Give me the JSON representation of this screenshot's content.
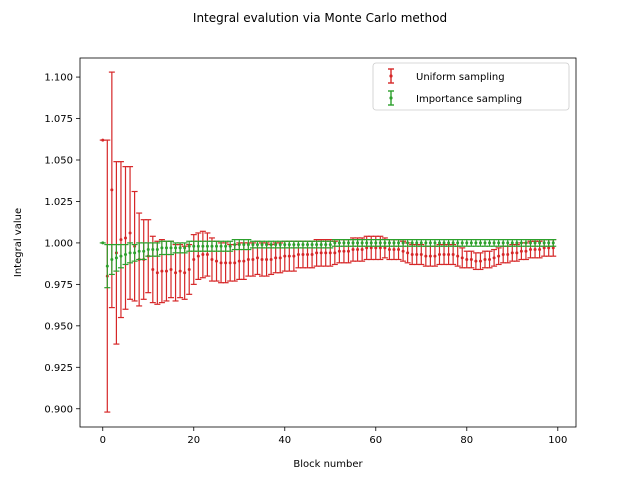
{
  "chart_data": {
    "type": "scatter",
    "title": "Integral evalution via Monte Carlo method",
    "xlabel": "Block number",
    "ylabel": "Integral value",
    "xlim": [
      -5,
      104
    ],
    "ylim": [
      0.889,
      1.1115
    ],
    "xticks": [
      0,
      20,
      40,
      60,
      80,
      100
    ],
    "yticks": [
      0.9,
      0.925,
      0.95,
      0.975,
      1.0,
      1.025,
      1.05,
      1.075,
      1.1
    ],
    "ytick_labels": [
      "0.900",
      "0.925",
      "0.950",
      "0.975",
      "1.000",
      "1.025",
      "1.050",
      "1.075",
      "1.100"
    ],
    "grid": false,
    "legend_position": "top-right",
    "series": [
      {
        "name": "Uniform sampling",
        "color": "#d62728",
        "x": [
          0,
          1,
          2,
          3,
          4,
          5,
          6,
          7,
          8,
          9,
          10,
          11,
          12,
          13,
          14,
          15,
          16,
          17,
          18,
          19,
          20,
          21,
          22,
          23,
          24,
          25,
          26,
          27,
          28,
          29,
          30,
          31,
          32,
          33,
          34,
          35,
          36,
          37,
          38,
          39,
          40,
          41,
          42,
          43,
          44,
          45,
          46,
          47,
          48,
          49,
          50,
          51,
          52,
          53,
          54,
          55,
          56,
          57,
          58,
          59,
          60,
          61,
          62,
          63,
          64,
          65,
          66,
          67,
          68,
          69,
          70,
          71,
          72,
          73,
          74,
          75,
          76,
          77,
          78,
          79,
          80,
          81,
          82,
          83,
          84,
          85,
          86,
          87,
          88,
          89,
          90,
          91,
          92,
          93,
          94,
          95,
          96,
          97,
          98,
          99
        ],
        "y": [
          1.062,
          0.98,
          1.032,
          0.994,
          1.002,
          1.003,
          1.006,
          0.998,
          0.99,
          0.99,
          0.992,
          0.984,
          0.982,
          0.983,
          0.983,
          0.984,
          0.982,
          0.983,
          0.982,
          0.984,
          0.99,
          0.992,
          0.993,
          0.993,
          0.99,
          0.989,
          0.988,
          0.988,
          0.988,
          0.988,
          0.989,
          0.989,
          0.99,
          0.99,
          0.991,
          0.99,
          0.99,
          0.99,
          0.991,
          0.991,
          0.992,
          0.992,
          0.992,
          0.993,
          0.993,
          0.993,
          0.993,
          0.994,
          0.994,
          0.994,
          0.994,
          0.994,
          0.995,
          0.995,
          0.995,
          0.996,
          0.996,
          0.996,
          0.997,
          0.997,
          0.997,
          0.997,
          0.997,
          0.996,
          0.996,
          0.996,
          0.995,
          0.994,
          0.993,
          0.993,
          0.993,
          0.992,
          0.992,
          0.992,
          0.993,
          0.993,
          0.993,
          0.993,
          0.992,
          0.991,
          0.99,
          0.99,
          0.989,
          0.989,
          0.99,
          0.99,
          0.991,
          0.992,
          0.993,
          0.993,
          0.994,
          0.994,
          0.995,
          0.995,
          0.996,
          0.996,
          0.996,
          0.997,
          0.997,
          0.997
        ],
        "err": [
          0.0,
          0.082,
          0.071,
          0.055,
          0.047,
          0.043,
          0.04,
          0.033,
          0.028,
          0.024,
          0.022,
          0.02,
          0.019,
          0.019,
          0.018,
          0.017,
          0.017,
          0.016,
          0.016,
          0.015,
          0.015,
          0.014,
          0.014,
          0.013,
          0.013,
          0.012,
          0.012,
          0.012,
          0.011,
          0.011,
          0.011,
          0.011,
          0.01,
          0.01,
          0.01,
          0.01,
          0.01,
          0.009,
          0.009,
          0.009,
          0.009,
          0.009,
          0.009,
          0.008,
          0.008,
          0.008,
          0.008,
          0.008,
          0.008,
          0.008,
          0.008,
          0.007,
          0.007,
          0.007,
          0.007,
          0.007,
          0.007,
          0.007,
          0.007,
          0.007,
          0.007,
          0.007,
          0.006,
          0.006,
          0.006,
          0.006,
          0.006,
          0.006,
          0.006,
          0.006,
          0.006,
          0.006,
          0.006,
          0.006,
          0.006,
          0.006,
          0.006,
          0.006,
          0.006,
          0.006,
          0.005,
          0.005,
          0.005,
          0.005,
          0.005,
          0.005,
          0.005,
          0.005,
          0.005,
          0.005,
          0.005,
          0.005,
          0.005,
          0.005,
          0.005,
          0.005,
          0.005,
          0.005,
          0.005,
          0.005
        ]
      },
      {
        "name": "Importance sampling",
        "color": "#2ca02c",
        "x": [
          0,
          1,
          2,
          3,
          4,
          5,
          6,
          7,
          8,
          9,
          10,
          11,
          12,
          13,
          14,
          15,
          16,
          17,
          18,
          19,
          20,
          21,
          22,
          23,
          24,
          25,
          26,
          27,
          28,
          29,
          30,
          31,
          32,
          33,
          34,
          35,
          36,
          37,
          38,
          39,
          40,
          41,
          42,
          43,
          44,
          45,
          46,
          47,
          48,
          49,
          50,
          51,
          52,
          53,
          54,
          55,
          56,
          57,
          58,
          59,
          60,
          61,
          62,
          63,
          64,
          65,
          66,
          67,
          68,
          69,
          70,
          71,
          72,
          73,
          74,
          75,
          76,
          77,
          78,
          79,
          80,
          81,
          82,
          83,
          84,
          85,
          86,
          87,
          88,
          89,
          90,
          91,
          92,
          93,
          94,
          95,
          96,
          97,
          98,
          99
        ],
        "y": [
          1.0,
          0.986,
          0.99,
          0.991,
          0.992,
          0.993,
          0.994,
          0.994,
          0.995,
          0.995,
          0.996,
          0.996,
          0.996,
          0.997,
          0.997,
          0.997,
          0.997,
          0.997,
          0.997,
          0.998,
          0.998,
          0.998,
          0.998,
          0.998,
          0.998,
          0.998,
          0.998,
          0.998,
          0.998,
          0.999,
          0.999,
          0.999,
          0.999,
          0.999,
          0.999,
          0.999,
          0.999,
          0.999,
          0.999,
          0.999,
          0.999,
          0.999,
          0.999,
          0.999,
          0.999,
          0.999,
          0.999,
          0.999,
          0.999,
          0.999,
          0.999,
          1.0,
          1.0,
          1.0,
          1.0,
          1.0,
          1.0,
          1.0,
          1.0,
          1.0,
          1.0,
          1.0,
          1.0,
          1.0,
          1.0,
          1.0,
          1.0,
          1.0,
          1.0,
          1.0,
          1.0,
          1.0,
          1.0,
          1.0,
          1.0,
          1.0,
          1.0,
          1.0,
          1.0,
          1.0,
          1.0,
          1.0,
          1.0,
          1.0,
          1.0,
          1.0,
          1.0,
          1.0,
          1.0,
          1.0,
          1.0,
          1.0,
          1.0,
          1.0,
          1.0,
          1.0,
          1.0,
          1.0,
          1.0,
          1.0
        ],
        "err": [
          0.0,
          0.013,
          0.009,
          0.008,
          0.007,
          0.006,
          0.006,
          0.005,
          0.005,
          0.005,
          0.004,
          0.004,
          0.004,
          0.004,
          0.004,
          0.004,
          0.003,
          0.003,
          0.003,
          0.003,
          0.003,
          0.003,
          0.003,
          0.003,
          0.003,
          0.003,
          0.003,
          0.003,
          0.003,
          0.003,
          0.003,
          0.003,
          0.003,
          0.002,
          0.002,
          0.002,
          0.002,
          0.002,
          0.002,
          0.002,
          0.002,
          0.002,
          0.002,
          0.002,
          0.002,
          0.002,
          0.002,
          0.002,
          0.002,
          0.002,
          0.002,
          0.002,
          0.002,
          0.002,
          0.002,
          0.002,
          0.002,
          0.002,
          0.002,
          0.002,
          0.002,
          0.002,
          0.002,
          0.002,
          0.002,
          0.002,
          0.002,
          0.002,
          0.002,
          0.002,
          0.002,
          0.002,
          0.002,
          0.002,
          0.002,
          0.002,
          0.002,
          0.002,
          0.002,
          0.002,
          0.002,
          0.002,
          0.002,
          0.002,
          0.002,
          0.002,
          0.002,
          0.002,
          0.002,
          0.002,
          0.002,
          0.002,
          0.002,
          0.002,
          0.002,
          0.002,
          0.002,
          0.002,
          0.002,
          0.002
        ]
      }
    ]
  }
}
